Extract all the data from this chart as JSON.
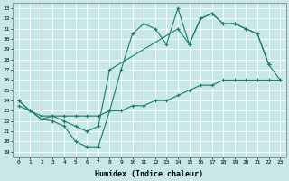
{
  "xlabel": "Humidex (Indice chaleur)",
  "background_color": "#c8e8e8",
  "grid_color": "#ffffff",
  "line_color": "#1a7a6e",
  "xlim": [
    -0.5,
    23.5
  ],
  "ylim": [
    18.5,
    33.5
  ],
  "xticks": [
    0,
    1,
    2,
    3,
    4,
    5,
    6,
    7,
    8,
    9,
    10,
    11,
    12,
    13,
    14,
    15,
    16,
    17,
    18,
    19,
    20,
    21,
    22,
    23
  ],
  "yticks": [
    19,
    20,
    21,
    22,
    23,
    24,
    25,
    26,
    27,
    28,
    29,
    30,
    31,
    32,
    33
  ],
  "line1_x": [
    0,
    1,
    2,
    3,
    4,
    5,
    6,
    7,
    8,
    9,
    10,
    11,
    12,
    13,
    14,
    15,
    16,
    17,
    18,
    19,
    20,
    21,
    22
  ],
  "line1_y": [
    24.0,
    23.0,
    22.2,
    22.0,
    21.5,
    20.0,
    19.5,
    19.5,
    23.0,
    27.0,
    30.5,
    31.5,
    31.0,
    29.5,
    33.0,
    29.5,
    32.0,
    32.5,
    31.5,
    31.5,
    31.0,
    30.5,
    27.5
  ],
  "line2_x": [
    0,
    1,
    2,
    3,
    4,
    5,
    6,
    7,
    8,
    14,
    15,
    16,
    17,
    18,
    19,
    20,
    21,
    22,
    23
  ],
  "line2_y": [
    24.0,
    23.0,
    22.2,
    22.5,
    22.0,
    21.5,
    21.0,
    21.5,
    27.0,
    31.0,
    29.5,
    32.0,
    32.5,
    31.5,
    31.5,
    31.0,
    30.5,
    27.5,
    26.0
  ],
  "line3_x": [
    0,
    1,
    2,
    3,
    4,
    5,
    6,
    7,
    8,
    9,
    10,
    11,
    12,
    13,
    14,
    15,
    16,
    17,
    18,
    19,
    20,
    21,
    22,
    23
  ],
  "line3_y": [
    23.5,
    23.0,
    22.5,
    22.5,
    22.5,
    22.5,
    22.5,
    22.5,
    23.0,
    23.0,
    23.5,
    23.5,
    24.0,
    24.0,
    24.5,
    25.0,
    25.5,
    25.5,
    26.0,
    26.0,
    26.0,
    26.0,
    26.0,
    26.0
  ]
}
